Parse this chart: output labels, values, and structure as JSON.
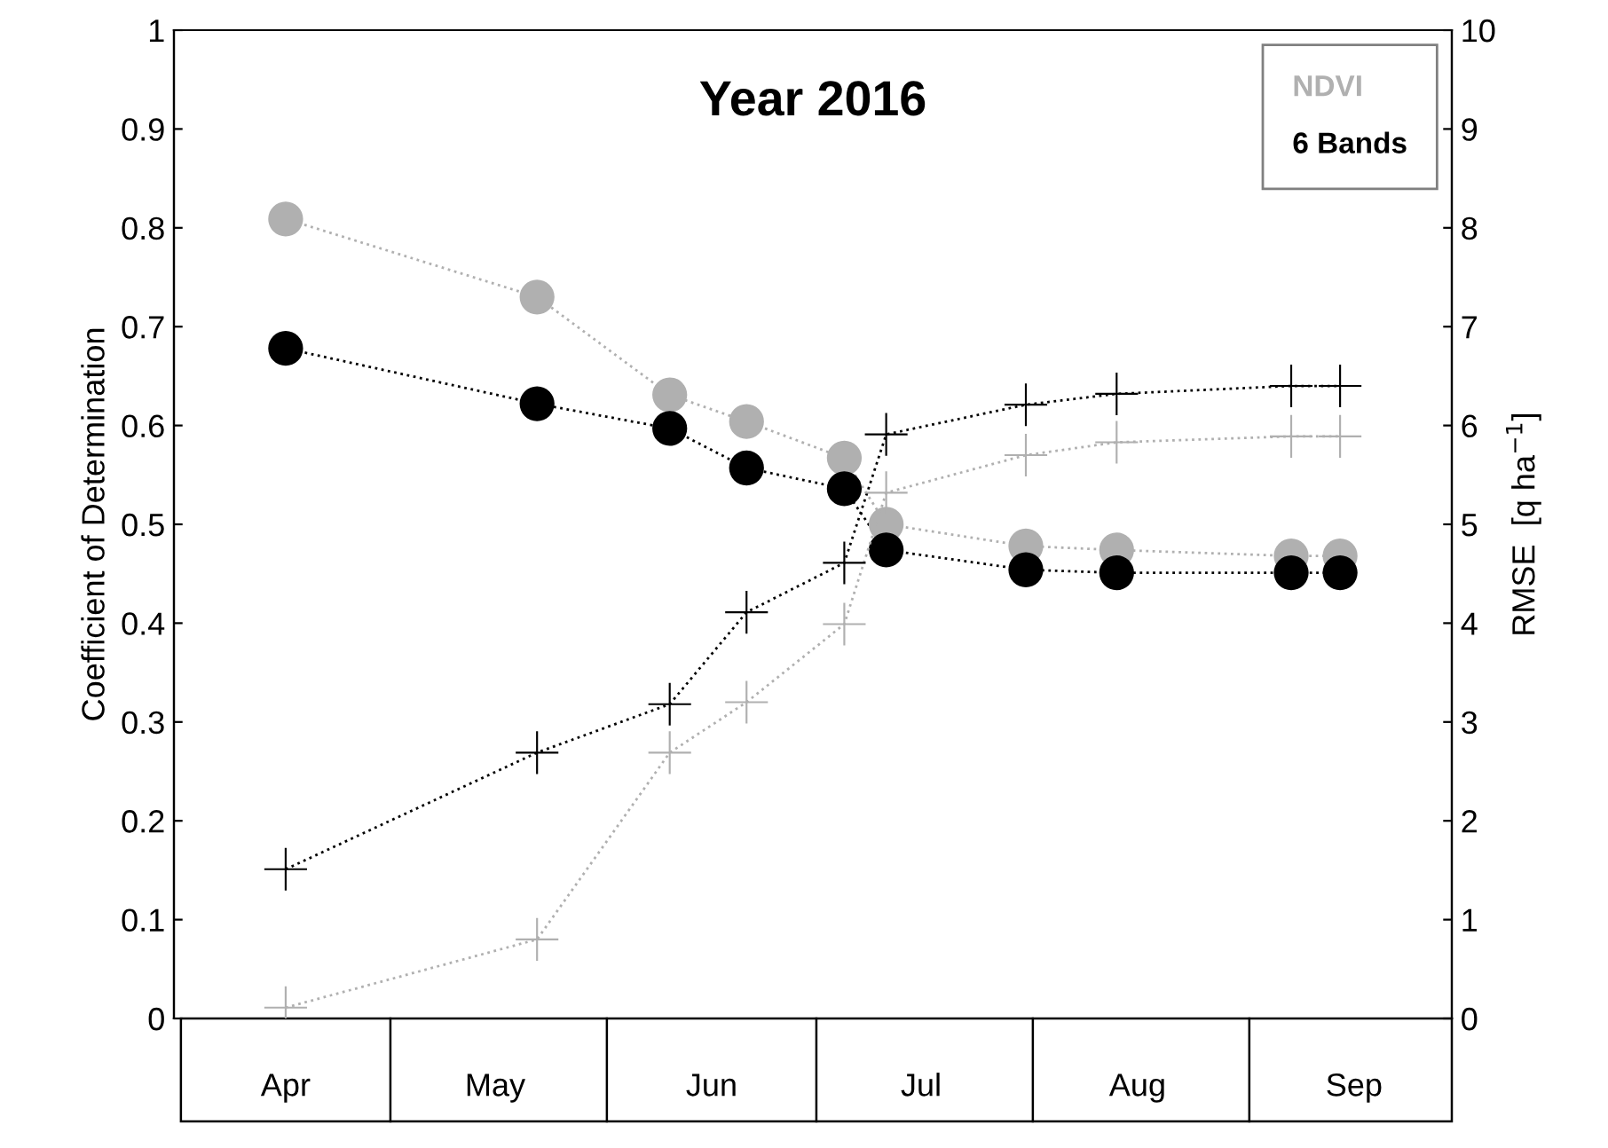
{
  "chart_data": {
    "type": "line",
    "title": "Year 2016",
    "ylabel": "Coefficient of Determination",
    "y2label": "RMSE  [q ha$^{−1}$]",
    "x": [
      "2016-04-16",
      "2016-05-22",
      "2016-06-10",
      "2016-06-21",
      "2016-07-05",
      "2016-07-11",
      "2016-07-31",
      "2016-08-13",
      "2016-09-07",
      "2016-09-14"
    ],
    "xlim": [
      "2016-03-31",
      "2016-09-30"
    ],
    "xticks": [
      {
        "value": "2016-04-16",
        "label": "Apr"
      },
      {
        "value": "2016-05-16",
        "label": "May"
      },
      {
        "value": "2016-06-16",
        "label": "Jun"
      },
      {
        "value": "2016-07-16",
        "label": "Jul"
      },
      {
        "value": "2016-08-16",
        "label": "Aug"
      },
      {
        "value": "2016-09-16",
        "label": "Sep"
      }
    ],
    "ylim": [
      0,
      1
    ],
    "yticks": [
      0,
      0.1,
      0.2,
      0.3,
      0.4,
      0.5,
      0.6,
      0.7,
      0.8,
      0.9,
      1
    ],
    "y2lim": [
      0,
      10
    ],
    "y2ticks": [
      0,
      1,
      2,
      3,
      4,
      5,
      6,
      7,
      8,
      9,
      10
    ],
    "grid": false,
    "legend": "top right",
    "line_style": "dotted",
    "series": [
      {
        "name": "NDVI",
        "color": "#b0b0b0",
        "marker": "circle",
        "values": [
          0.809,
          0.73,
          0.631,
          0.604,
          0.567,
          0.5,
          0.478,
          0.474,
          0.468,
          0.468
        ]
      },
      {
        "name": "6 Bands",
        "color": "#000000",
        "marker": "circle",
        "values": [
          0.678,
          0.622,
          0.597,
          0.557,
          0.536,
          0.474,
          0.454,
          0.451,
          0.451,
          0.451
        ]
      },
      {
        "color": "#b0b0b0",
        "marker": "cross",
        "axis": "y2",
        "values": [
          0.11,
          0.8,
          2.69,
          3.2,
          3.99,
          5.32,
          5.7,
          5.83,
          5.89,
          5.89
        ]
      },
      {
        "color": "#000000",
        "marker": "cross",
        "axis": "y2",
        "values": [
          1.51,
          2.69,
          3.18,
          4.11,
          4.61,
          5.91,
          6.21,
          6.32,
          6.4,
          6.4
        ]
      }
    ]
  }
}
